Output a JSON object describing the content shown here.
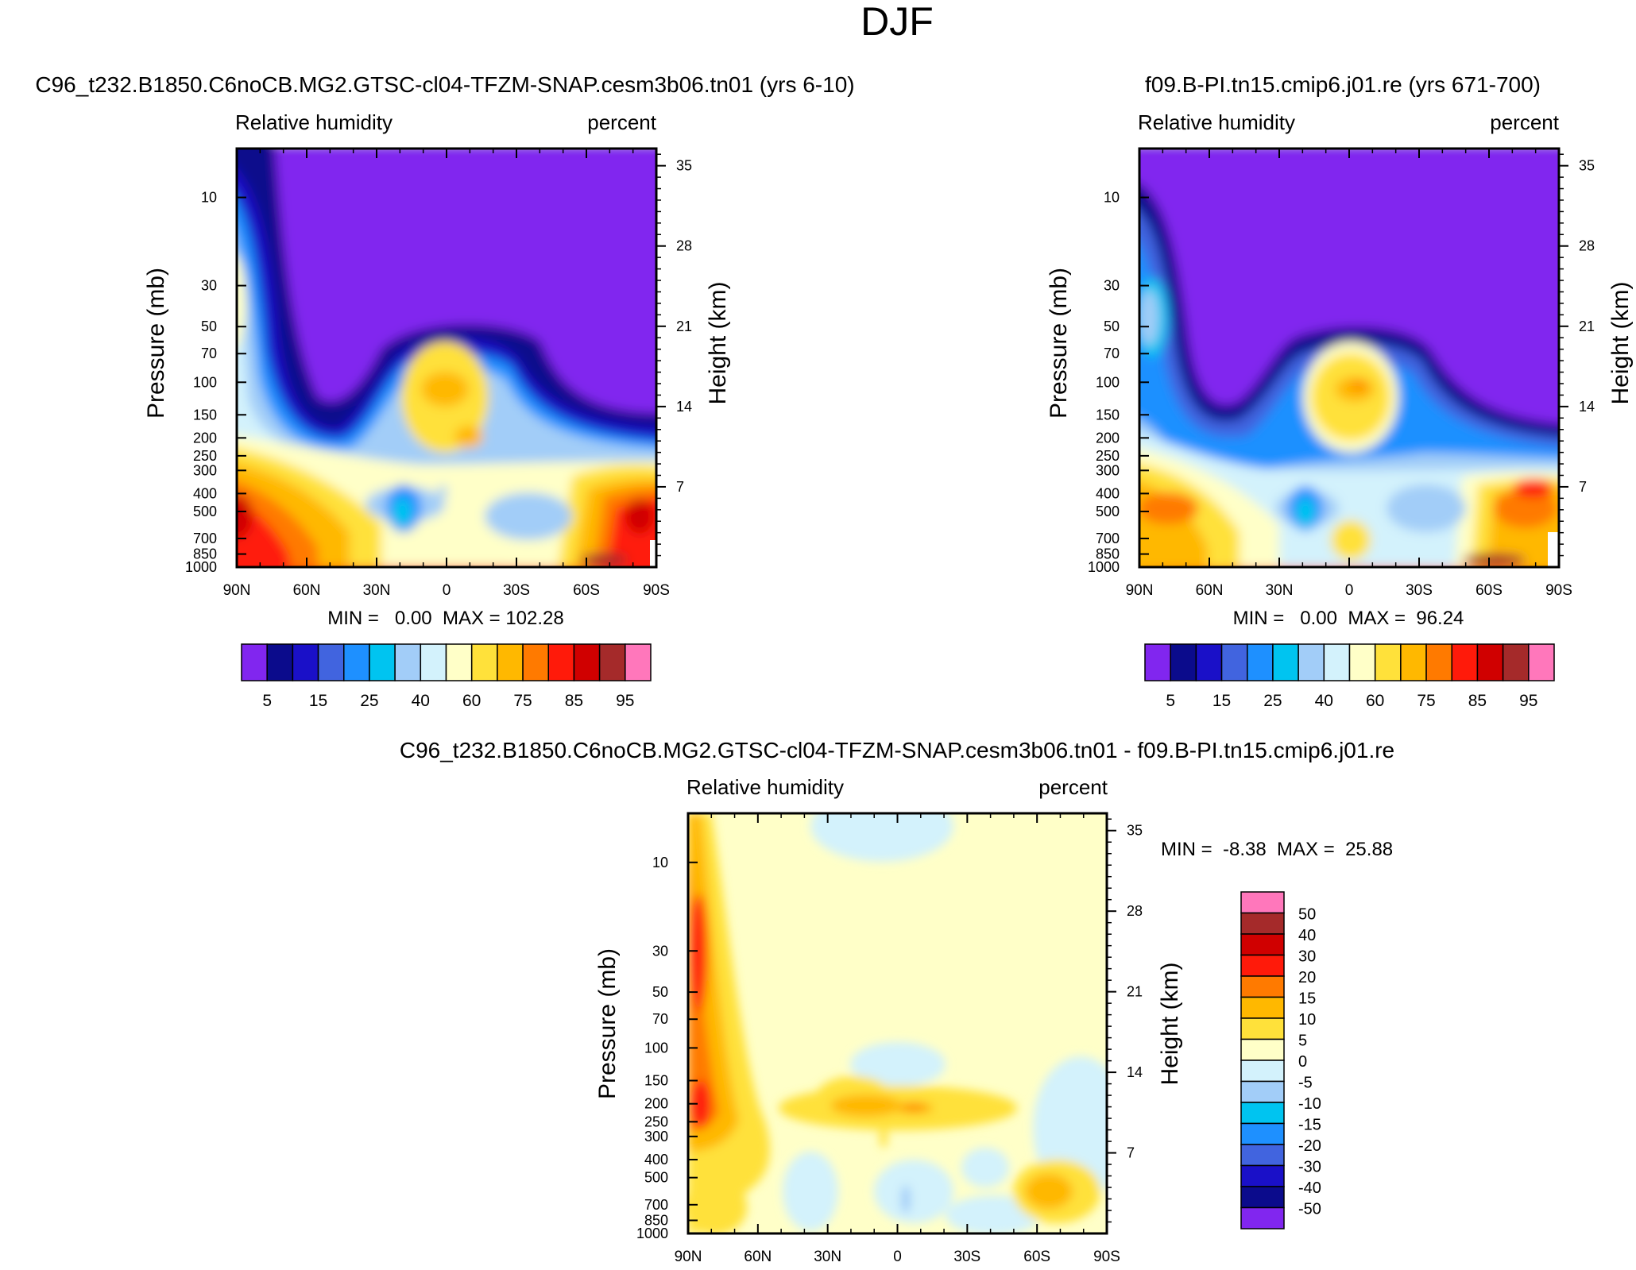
{
  "page_title": "DJF",
  "colors": {
    "abs_scale": [
      "#8126ef",
      "#0b0b8c",
      "#1a10c8",
      "#4164df",
      "#1e90ff",
      "#00c4f0",
      "#a2cdf8",
      "#d3f2fc",
      "#ffffc8",
      "#ffe13a",
      "#ffb800",
      "#ff7a00",
      "#ff1a0a",
      "#d00000",
      "#a52a2a",
      "#ff77bb"
    ],
    "diff_scale": [
      "#8126ef",
      "#0b0b8c",
      "#1a10c8",
      "#4164df",
      "#1e90ff",
      "#00c4f0",
      "#a2cdf8",
      "#d3f2fc",
      "#ffffc8",
      "#ffe13a",
      "#ffb800",
      "#ff7a00",
      "#ff1a0a",
      "#d00000",
      "#a52a2a",
      "#ff77bb"
    ]
  },
  "panels": {
    "left": {
      "title": "C96_t232.B1850.C6noCB.MG2.GTSC-cl04-TFZM-SNAP.cesm3b06.tn01 (yrs 6-10)",
      "var_label": "Relative humidity",
      "units_label": "percent",
      "ylabel_left": "Pressure (mb)",
      "ylabel_right": "Height (km)",
      "stats": "MIN =   0.00  MAX = 102.28"
    },
    "right": {
      "title": "f09.B-PI.tn15.cmip6.j01.re (yrs 671-700)",
      "var_label": "Relative humidity",
      "units_label": "percent",
      "ylabel_left": "Pressure (mb)",
      "ylabel_right": "Height (km)",
      "stats": "MIN =   0.00  MAX =  96.24"
    },
    "diff": {
      "title": "C96_t232.B1850.C6noCB.MG2.GTSC-cl04-TFZM-SNAP.cesm3b06.tn01 - f09.B-PI.tn15.cmip6.j01.re",
      "var_label": "Relative humidity",
      "units_label": "percent",
      "ylabel_left": "Pressure (mb)",
      "ylabel_right": "Height (km)",
      "stats": "MIN =  -8.38  MAX =  25.88"
    }
  },
  "chart_data": [
    {
      "type": "heatmap",
      "title": "C96_t232.B1850.C6noCB.MG2.GTSC-cl04-TFZM-SNAP.cesm3b06.tn01 (yrs 6-10)",
      "variable": "Relative humidity",
      "units": "percent",
      "xlabel": "",
      "x_ticks": [
        "90N",
        "60N",
        "30N",
        "0",
        "30S",
        "60S",
        "90S"
      ],
      "ylabel": "Pressure (mb)",
      "y_ticks": [
        "10",
        "30",
        "50",
        "70",
        "100",
        "150",
        "200",
        "250",
        "300",
        "400",
        "500",
        "700",
        "850",
        "1000"
      ],
      "y2label": "Height (km)",
      "y2_ticks": [
        "35",
        "28",
        "21",
        "14",
        "7"
      ],
      "min": 0.0,
      "max": 102.28,
      "colorbar_labels": [
        "5",
        "15",
        "25",
        "40",
        "60",
        "75",
        "85",
        "95"
      ]
    },
    {
      "type": "heatmap",
      "title": "f09.B-PI.tn15.cmip6.j01.re (yrs 671-700)",
      "variable": "Relative humidity",
      "units": "percent",
      "xlabel": "",
      "x_ticks": [
        "90N",
        "60N",
        "30N",
        "0",
        "30S",
        "60S",
        "90S"
      ],
      "ylabel": "Pressure (mb)",
      "y_ticks": [
        "10",
        "30",
        "50",
        "70",
        "100",
        "150",
        "200",
        "250",
        "300",
        "400",
        "500",
        "700",
        "850",
        "1000"
      ],
      "y2label": "Height (km)",
      "y2_ticks": [
        "35",
        "28",
        "21",
        "14",
        "7"
      ],
      "min": 0.0,
      "max": 96.24,
      "colorbar_labels": [
        "5",
        "15",
        "25",
        "40",
        "60",
        "75",
        "85",
        "95"
      ]
    },
    {
      "type": "heatmap",
      "title": "C96_t232.B1850.C6noCB.MG2.GTSC-cl04-TFZM-SNAP.cesm3b06.tn01 - f09.B-PI.tn15.cmip6.j01.re",
      "variable": "Relative humidity",
      "units": "percent",
      "xlabel": "",
      "x_ticks": [
        "90N",
        "60N",
        "30N",
        "0",
        "30S",
        "60S",
        "90S"
      ],
      "ylabel": "Pressure (mb)",
      "y_ticks": [
        "10",
        "30",
        "50",
        "70",
        "100",
        "150",
        "200",
        "250",
        "300",
        "400",
        "500",
        "700",
        "850",
        "1000"
      ],
      "y2label": "Height (km)",
      "y2_ticks": [
        "35",
        "28",
        "21",
        "14",
        "7"
      ],
      "min": -8.38,
      "max": 25.88,
      "colorbar_labels": [
        "50",
        "40",
        "30",
        "20",
        "15",
        "10",
        "5",
        "0",
        "-5",
        "-10",
        "-15",
        "-20",
        "-30",
        "-40",
        "-50"
      ]
    }
  ]
}
